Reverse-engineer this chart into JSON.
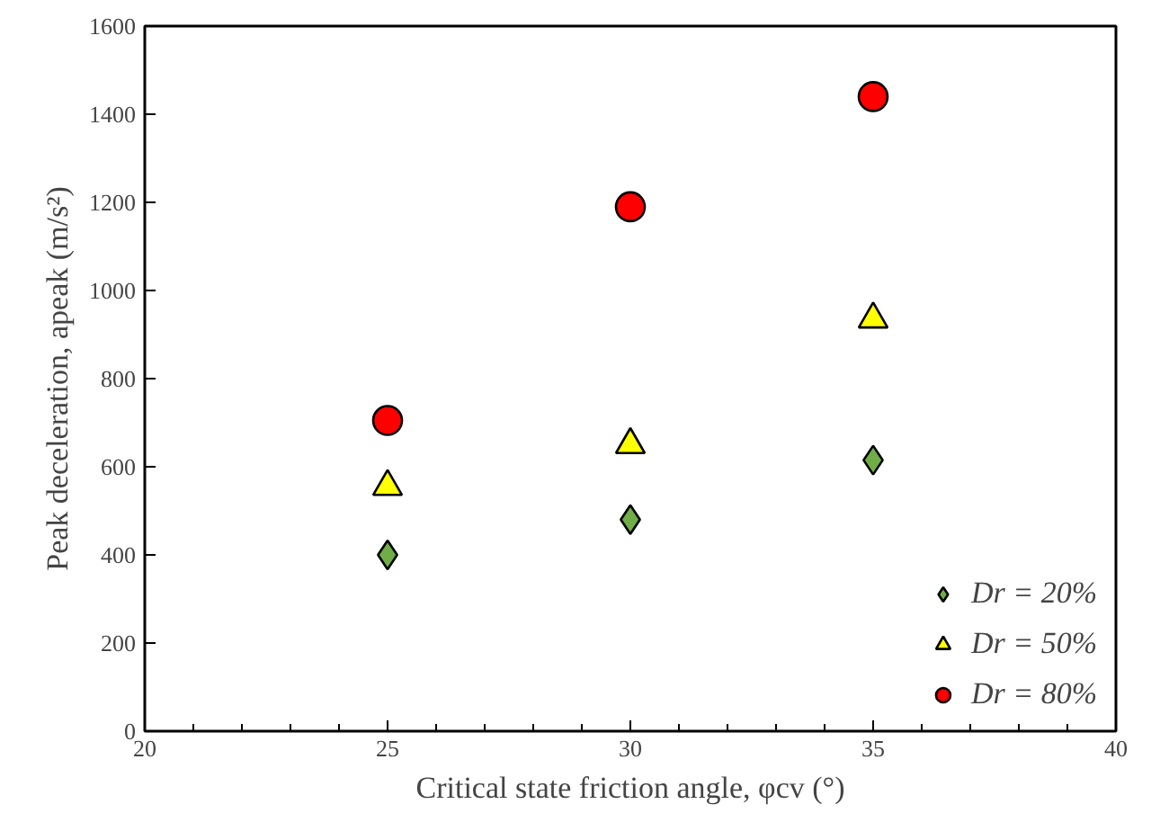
{
  "chart_data": {
    "type": "scatter",
    "xlabel": "Critical state friction angle, φcv (°)",
    "ylabel": "Peak deceleration, apeak (m/s²)",
    "x": [
      25,
      30,
      35
    ],
    "series": [
      {
        "name": "Dr = 20%",
        "color": "#70ad47",
        "marker": "diamond",
        "values": [
          400,
          480,
          615
        ]
      },
      {
        "name": "Dr = 50%",
        "color": "#ffff00",
        "marker": "triangle",
        "values": [
          555,
          650,
          935
        ]
      },
      {
        "name": "Dr = 80%",
        "color": "#ff0000",
        "marker": "circle",
        "values": [
          705,
          1190,
          1440
        ]
      }
    ],
    "xlim": [
      20,
      40
    ],
    "xticks": [
      20,
      25,
      30,
      35,
      40
    ],
    "ylim": [
      0,
      1600
    ],
    "yticks": [
      0,
      200,
      400,
      600,
      800,
      1000,
      1200,
      1400,
      1600
    ],
    "grid": false,
    "legend": "bottom right"
  }
}
